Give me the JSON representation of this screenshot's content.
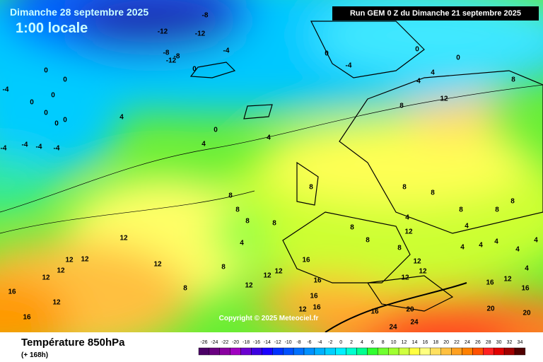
{
  "header": {
    "date": "Dimanche 28 septembre 2025",
    "time": "1:00 locale",
    "run": "Run GEM 0 Z du Dimanche 21 septembre 2025"
  },
  "map": {
    "labels": [
      -8,
      -12,
      -12,
      -8,
      -8,
      -12,
      -4,
      0,
      -4,
      0,
      0,
      0,
      0,
      0,
      0,
      0,
      -4,
      -4,
      -4,
      -4,
      4,
      4,
      0,
      4,
      0,
      -4,
      0,
      0,
      4,
      4,
      8,
      12,
      8,
      8,
      8,
      8,
      8,
      8,
      4,
      12,
      12,
      12,
      12,
      12,
      12,
      12,
      16,
      16,
      8,
      8,
      12,
      12,
      12,
      16,
      16,
      16,
      16,
      12,
      16,
      20,
      24,
      24,
      12,
      12,
      12,
      8,
      8,
      8,
      8,
      8,
      8,
      4,
      4,
      4,
      4,
      4,
      4,
      4,
      4,
      8,
      8,
      12,
      16,
      16,
      20,
      20,
      12
    ]
  },
  "copyright": "Copyright © 2025 Meteociel.fr",
  "footer": {
    "title": "Température 850hPa",
    "subtitle": "(+ 168h)"
  },
  "legend": {
    "ticks": [
      -26,
      -24,
      -22,
      -20,
      -18,
      -16,
      -14,
      -12,
      -10,
      -8,
      -6,
      -4,
      -2,
      0,
      2,
      4,
      6,
      8,
      10,
      12,
      14,
      16,
      18,
      20,
      22,
      24,
      26,
      28,
      30,
      32,
      34
    ],
    "colors": [
      "#4b0066",
      "#6a0080",
      "#8a00a0",
      "#a000c0",
      "#6b00d0",
      "#3c00e0",
      "#1a00ff",
      "#0030ff",
      "#0050ff",
      "#0070ff",
      "#0090ff",
      "#00b0ff",
      "#00d0ff",
      "#00f0ff",
      "#00ffd0",
      "#00ff90",
      "#30ff30",
      "#70ff30",
      "#a0ff30",
      "#d0ff40",
      "#ffff40",
      "#ffff80",
      "#ffe060",
      "#ffc040",
      "#ffa020",
      "#ff8000",
      "#ff5000",
      "#ff2020",
      "#e00000",
      "#a00000",
      "#500000"
    ]
  }
}
